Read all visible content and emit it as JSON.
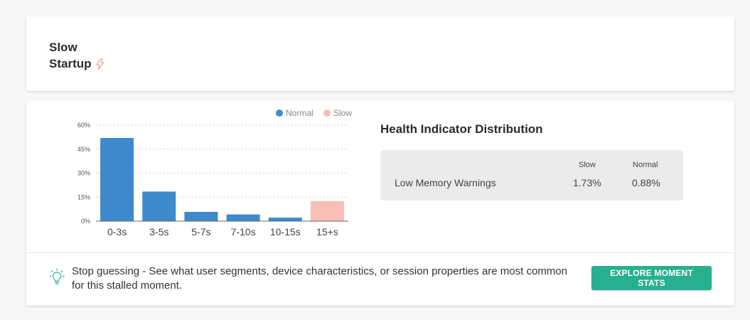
{
  "header": {
    "title_line1": "Slow",
    "title_line2": "Startup"
  },
  "chart_data": {
    "type": "bar",
    "categories": [
      "0-3s",
      "3-5s",
      "5-7s",
      "7-10s",
      "10-15s",
      "15+s"
    ],
    "values": [
      52,
      18.5,
      5.8,
      4.2,
      2.2,
      12.5
    ],
    "point_series": [
      "Normal",
      "Normal",
      "Normal",
      "Normal",
      "Normal",
      "Slow"
    ],
    "series_names": [
      "Normal",
      "Slow"
    ],
    "colors": {
      "Normal": "#3e8acc",
      "Slow": "#f9bdb8"
    },
    "yticks": [
      "0%",
      "15%",
      "30%",
      "45%",
      "60%"
    ],
    "ytick_values": [
      0,
      15,
      30,
      45,
      60
    ],
    "ylim": [
      0,
      60
    ],
    "grid": true,
    "legend": "top-right"
  },
  "health": {
    "title": "Health Indicator Distribution",
    "col_slow": "Slow",
    "col_normal": "Normal",
    "row_label": "Low Memory Warnings",
    "slow_value": "1.73%",
    "normal_value": "0.88%"
  },
  "tip": {
    "text": "Stop guessing - See what user segments, device characteristics, or session properties are most common for this stalled moment.",
    "button_label": "EXPLORE MOMENT STATS"
  },
  "icons": {
    "title_icon": "lightning-icon",
    "tip_icon": "lightbulb-icon"
  }
}
